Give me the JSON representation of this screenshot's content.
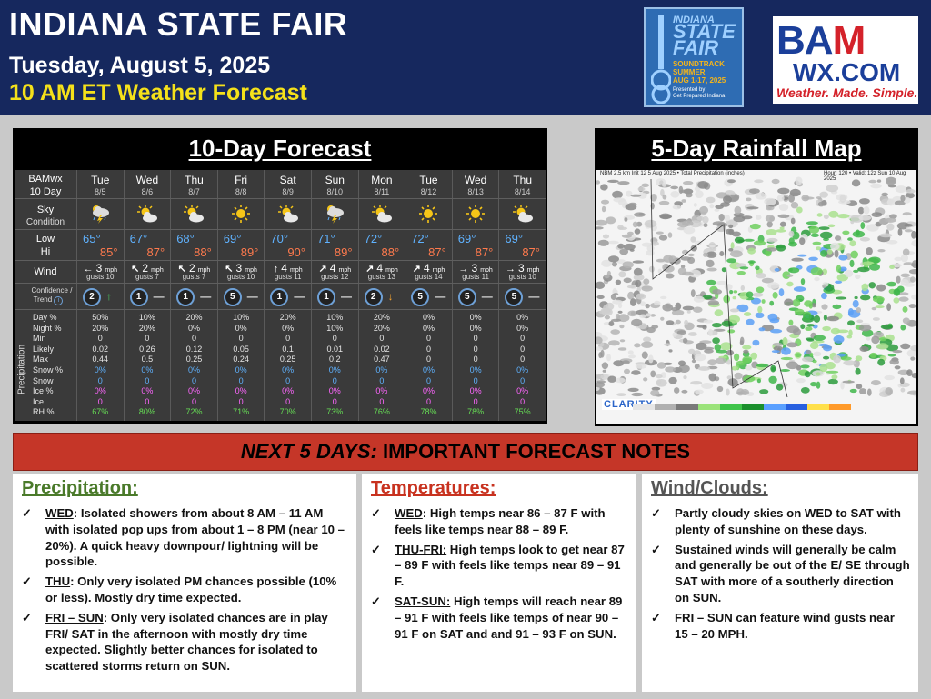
{
  "header": {
    "title": "INDIANA STATE FAIR",
    "date": "Tuesday, August 5, 2025",
    "subtitle": "10 AM ET Weather Forecast"
  },
  "fair_logo": {
    "line1": "INDIANA",
    "line2a": "STATE",
    "line2b": "FAIR",
    "line3a": "SOUNDTRACK",
    "line3b": "SUMMER",
    "line3c": "AUG 1-17, 2025",
    "line4a": "Presented by",
    "line4b": "Get Prepared Indiana"
  },
  "bam_logo": {
    "brand_b": "BA",
    "brand_m": "M",
    "domain": "WX.COM",
    "tagline": "Weather. Made. Simple."
  },
  "forecast": {
    "title": "10-Day Forecast",
    "brand_label": "BAMwx",
    "range_label": "10 Day",
    "row_labels": {
      "sky": "Sky",
      "condition": "Condition",
      "low": "Low",
      "hi": "Hi",
      "wind": "Wind",
      "confidence": "Confidence /",
      "trend": "Trend",
      "precip_side": "Precipitation",
      "day_pct": "Day %",
      "night_pct": "Night %",
      "min": "Min",
      "likely": "Likely",
      "max": "Max",
      "snow_pct": "Snow %",
      "snow": "Snow",
      "ice_pct": "Ice %",
      "ice": "Ice",
      "rh_pct": "RH %"
    },
    "days": [
      {
        "day": "Tue",
        "date": "8/5",
        "icon": "thunderstorm",
        "low": "65°",
        "hi": "85°",
        "wind_arrow": "←",
        "wind_speed": "3",
        "wind_unit": "mph",
        "gusts": "gusts 10",
        "confidence": "2",
        "trend": "↑",
        "trend_color": "#4cd964",
        "day_pct": "50%",
        "night_pct": "20%",
        "min": "0",
        "likely": "0.02",
        "max": "0.44",
        "snow_pct": "0%",
        "snow": "0",
        "ice_pct": "0%",
        "ice": "0",
        "rh": "67%"
      },
      {
        "day": "Wed",
        "date": "8/6",
        "icon": "partly-cloudy",
        "low": "67°",
        "hi": "87°",
        "wind_arrow": "↖",
        "wind_speed": "2",
        "wind_unit": "mph",
        "gusts": "gusts 7",
        "confidence": "1",
        "trend": "—",
        "trend_color": "#dddddd",
        "day_pct": "10%",
        "night_pct": "20%",
        "min": "0",
        "likely": "0.26",
        "max": "0.5",
        "snow_pct": "0%",
        "snow": "0",
        "ice_pct": "0%",
        "ice": "0",
        "rh": "80%"
      },
      {
        "day": "Thu",
        "date": "8/7",
        "icon": "partly-cloudy",
        "low": "68°",
        "hi": "88°",
        "wind_arrow": "↖",
        "wind_speed": "2",
        "wind_unit": "mph",
        "gusts": "gusts 7",
        "confidence": "1",
        "trend": "—",
        "trend_color": "#dddddd",
        "day_pct": "20%",
        "night_pct": "0%",
        "min": "0",
        "likely": "0.12",
        "max": "0.25",
        "snow_pct": "0%",
        "snow": "0",
        "ice_pct": "0%",
        "ice": "0",
        "rh": "72%"
      },
      {
        "day": "Fri",
        "date": "8/8",
        "icon": "sunny",
        "low": "69°",
        "hi": "89°",
        "wind_arrow": "↖",
        "wind_speed": "3",
        "wind_unit": "mph",
        "gusts": "gusts 10",
        "confidence": "5",
        "trend": "—",
        "trend_color": "#dddddd",
        "day_pct": "10%",
        "night_pct": "0%",
        "min": "0",
        "likely": "0.05",
        "max": "0.24",
        "snow_pct": "0%",
        "snow": "0",
        "ice_pct": "0%",
        "ice": "0",
        "rh": "71%"
      },
      {
        "day": "Sat",
        "date": "8/9",
        "icon": "partly-cloudy",
        "low": "70°",
        "hi": "90°",
        "wind_arrow": "↑",
        "wind_speed": "4",
        "wind_unit": "mph",
        "gusts": "gusts 11",
        "confidence": "1",
        "trend": "—",
        "trend_color": "#dddddd",
        "day_pct": "20%",
        "night_pct": "0%",
        "min": "0",
        "likely": "0.1",
        "max": "0.25",
        "snow_pct": "0%",
        "snow": "0",
        "ice_pct": "0%",
        "ice": "0",
        "rh": "70%"
      },
      {
        "day": "Sun",
        "date": "8/10",
        "icon": "thunderstorm",
        "low": "71°",
        "hi": "89°",
        "wind_arrow": "↗",
        "wind_speed": "4",
        "wind_unit": "mph",
        "gusts": "gusts 12",
        "confidence": "1",
        "trend": "—",
        "trend_color": "#dddddd",
        "day_pct": "10%",
        "night_pct": "10%",
        "min": "0",
        "likely": "0.01",
        "max": "0.2",
        "snow_pct": "0%",
        "snow": "0",
        "ice_pct": "0%",
        "ice": "0",
        "rh": "73%"
      },
      {
        "day": "Mon",
        "date": "8/11",
        "icon": "partly-cloudy",
        "low": "72°",
        "hi": "88°",
        "wind_arrow": "↗",
        "wind_speed": "4",
        "wind_unit": "mph",
        "gusts": "gusts 13",
        "confidence": "2",
        "trend": "↓",
        "trend_color": "#f0a030",
        "day_pct": "20%",
        "night_pct": "20%",
        "min": "0",
        "likely": "0.02",
        "max": "0.47",
        "snow_pct": "0%",
        "snow": "0",
        "ice_pct": "0%",
        "ice": "0",
        "rh": "76%"
      },
      {
        "day": "Tue",
        "date": "8/12",
        "icon": "sunny",
        "low": "72°",
        "hi": "87°",
        "wind_arrow": "↗",
        "wind_speed": "4",
        "wind_unit": "mph",
        "gusts": "gusts 14",
        "confidence": "5",
        "trend": "—",
        "trend_color": "#dddddd",
        "day_pct": "0%",
        "night_pct": "0%",
        "min": "0",
        "likely": "0",
        "max": "0",
        "snow_pct": "0%",
        "snow": "0",
        "ice_pct": "0%",
        "ice": "0",
        "rh": "78%"
      },
      {
        "day": "Wed",
        "date": "8/13",
        "icon": "sunny",
        "low": "69°",
        "hi": "87°",
        "wind_arrow": "→",
        "wind_speed": "3",
        "wind_unit": "mph",
        "gusts": "gusts 11",
        "confidence": "5",
        "trend": "—",
        "trend_color": "#dddddd",
        "day_pct": "0%",
        "night_pct": "0%",
        "min": "0",
        "likely": "0",
        "max": "0",
        "snow_pct": "0%",
        "snow": "0",
        "ice_pct": "0%",
        "ice": "0",
        "rh": "78%"
      },
      {
        "day": "Thu",
        "date": "8/14",
        "icon": "partly-cloudy",
        "low": "69°",
        "hi": "87°",
        "wind_arrow": "→",
        "wind_speed": "3",
        "wind_unit": "mph",
        "gusts": "gusts 10",
        "confidence": "5",
        "trend": "—",
        "trend_color": "#dddddd",
        "day_pct": "0%",
        "night_pct": "0%",
        "min": "0",
        "likely": "0",
        "max": "0",
        "snow_pct": "0%",
        "snow": "0",
        "ice_pct": "0%",
        "ice": "0",
        "rh": "75%"
      }
    ]
  },
  "rainfall": {
    "title": "5-Day Rainfall Map",
    "map_header_left": "NBM 2.5 km Init 12 5 Aug 2025 • Total Precipitation (inches)",
    "map_header_right": "Hour: 120 • Valid: 12z Sun 10 Aug 2025",
    "brand": "CLARITY"
  },
  "notes": {
    "banner_italic": "NEXT 5 DAYS:",
    "banner_rest": " IMPORTANT FORECAST NOTES",
    "precipitation": {
      "title": "Precipitation:",
      "items": [
        {
          "key": "WED",
          "text": ": Isolated showers from about 8 AM – 11 AM with isolated pop ups from about 1 – 8 PM (near 10 – 20%).  A quick heavy downpour/ lightning will be possible."
        },
        {
          "key": "THU",
          "text": ": Only very isolated PM chances possible (10% or less).  Mostly dry time expected."
        },
        {
          "key": "FRI – SUN",
          "text": ": Only very isolated chances are in play FRI/ SAT in the afternoon with mostly dry time expected.  Slightly better chances for isolated to scattered storms return on SUN."
        }
      ]
    },
    "temperatures": {
      "title": "Temperatures:",
      "items": [
        {
          "key": "WED",
          "text": ": High temps near 86 – 87 F with feels like temps near 88 – 89 F."
        },
        {
          "key": "THU-FRI:",
          "text": " High temps look to get near 87 – 89 F with feels like temps near 89 – 91 F."
        },
        {
          "key": "SAT-SUN:",
          "text": " High temps will reach near 89 – 91 F with feels like temps of near 90 – 91 F on SAT and and 91 – 93 F on SUN."
        }
      ]
    },
    "wind_clouds": {
      "title": "Wind/Clouds:",
      "items": [
        {
          "key": "",
          "text": "Partly cloudy skies on WED to SAT with plenty of sunshine on these days."
        },
        {
          "key": "",
          "text": "Sustained winds will generally be calm and generally be out of the E/ SE through SAT with more of a southerly direction on SUN."
        },
        {
          "key": "",
          "text": "FRI – SUN can feature wind gusts near 15 – 20 MPH."
        }
      ]
    }
  }
}
